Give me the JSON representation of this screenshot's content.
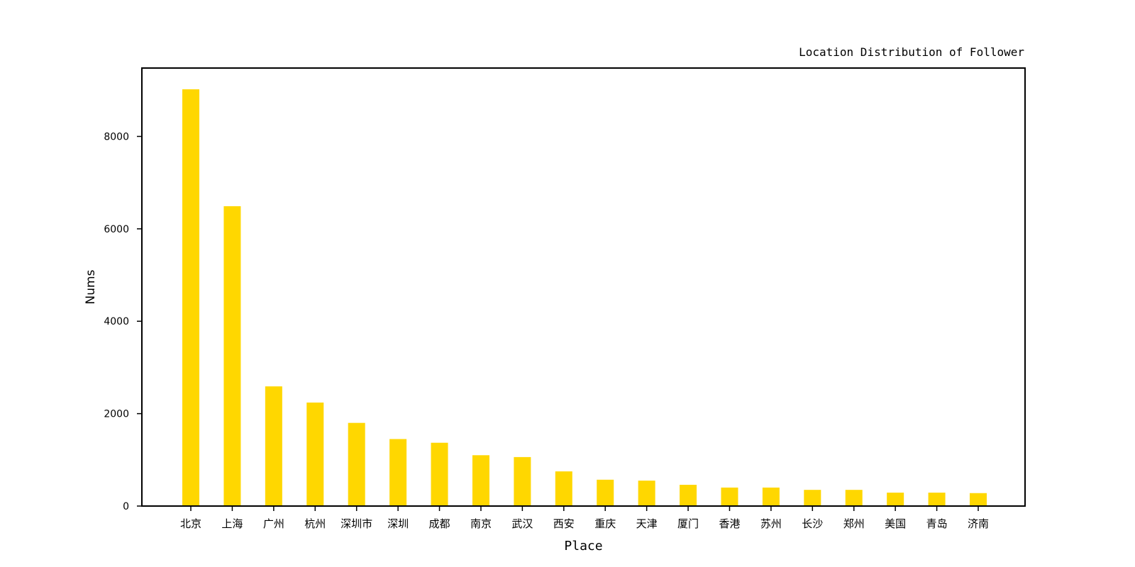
{
  "chart_data": {
    "type": "bar",
    "title": "Location Distribution of Follower",
    "xlabel": "Place",
    "ylabel": "Nums",
    "categories": [
      "北京",
      "上海",
      "广州",
      "杭州",
      "深圳市",
      "深圳",
      "成都",
      "南京",
      "武汉",
      "西安",
      "重庆",
      "天津",
      "厦门",
      "香港",
      "苏州",
      "长沙",
      "郑州",
      "美国",
      "青岛",
      "济南"
    ],
    "values": [
      9020,
      6490,
      2590,
      2240,
      1800,
      1450,
      1370,
      1100,
      1060,
      750,
      570,
      550,
      460,
      400,
      400,
      350,
      350,
      290,
      290,
      280
    ],
    "ylim": [
      0,
      9480
    ],
    "yticks": [
      0,
      2000,
      4000,
      6000,
      8000
    ],
    "bar_color": "#FFD700",
    "grid": false
  }
}
